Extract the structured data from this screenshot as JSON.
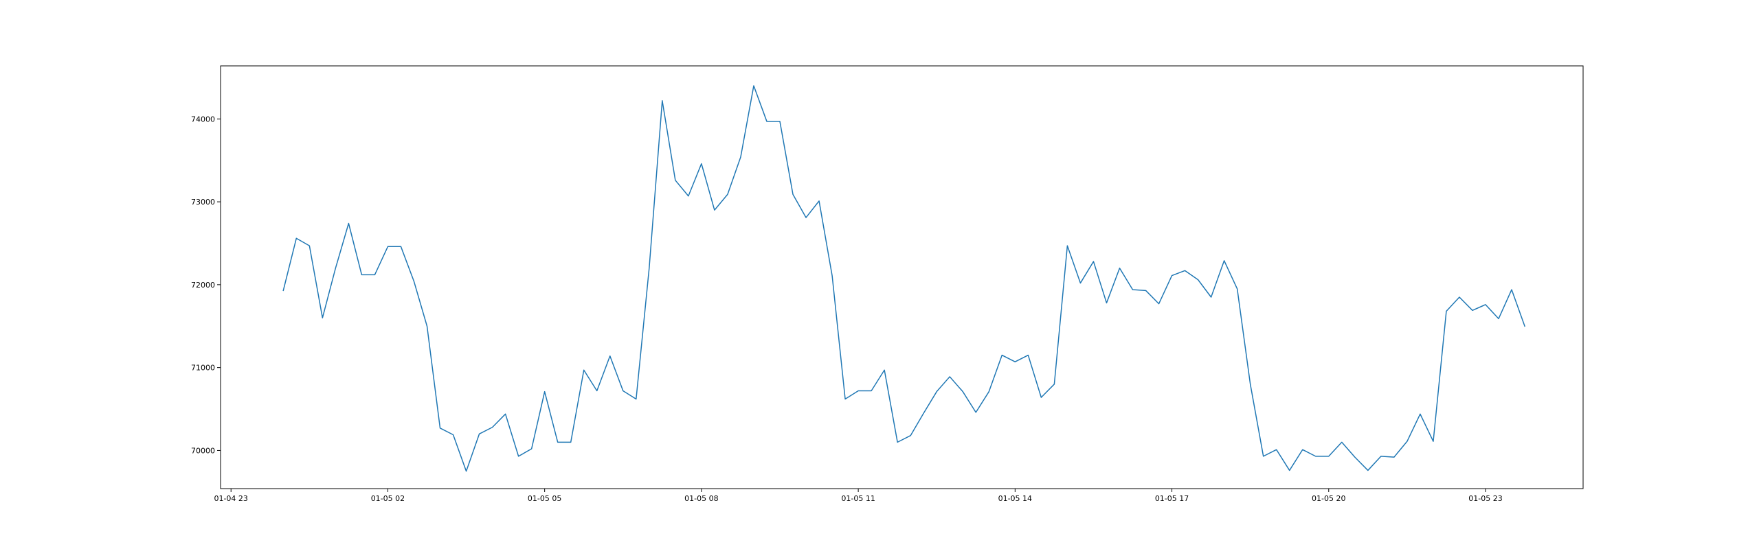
{
  "chart_data": {
    "type": "line",
    "title": "",
    "xlabel": "",
    "ylabel": "",
    "grid": false,
    "line_color": "#1f77b4",
    "x_start": "2024-01-05 00:00",
    "x_step_minutes": 15,
    "xlim": [
      "2024-01-04 22:48",
      "2024-01-06 00:52"
    ],
    "ylim": [
      69540,
      74640
    ],
    "x_ticks": [
      {
        "t": "2024-01-04 23:00",
        "label": "01-04 23"
      },
      {
        "t": "2024-01-05 02:00",
        "label": "01-05 02"
      },
      {
        "t": "2024-01-05 05:00",
        "label": "01-05 05"
      },
      {
        "t": "2024-01-05 08:00",
        "label": "01-05 08"
      },
      {
        "t": "2024-01-05 11:00",
        "label": "01-05 11"
      },
      {
        "t": "2024-01-05 14:00",
        "label": "01-05 14"
      },
      {
        "t": "2024-01-05 17:00",
        "label": "01-05 17"
      },
      {
        "t": "2024-01-05 20:00",
        "label": "01-05 20"
      },
      {
        "t": "2024-01-05 23:00",
        "label": "01-05 23"
      }
    ],
    "y_ticks": [
      {
        "v": 70000,
        "label": "70000"
      },
      {
        "v": 71000,
        "label": "71000"
      },
      {
        "v": 72000,
        "label": "72000"
      },
      {
        "v": 73000,
        "label": "73000"
      },
      {
        "v": 74000,
        "label": "74000"
      }
    ],
    "series": [
      {
        "values": [
          71930,
          72560,
          72470,
          71600,
          72200,
          72740,
          72120,
          72120,
          72460,
          72460,
          72040,
          71500,
          70270,
          70190,
          69750,
          70200,
          70280,
          70440,
          69930,
          70020,
          70710,
          70100,
          70100,
          70970,
          70720,
          71140,
          70720,
          70620,
          72200,
          74220,
          73260,
          73070,
          73460,
          72900,
          73090,
          73540,
          74400,
          73970,
          73970,
          73090,
          72810,
          73010,
          72110,
          70620,
          70720,
          70720,
          70970,
          70100,
          70180,
          70450,
          70710,
          70890,
          70710,
          70460,
          70710,
          71150,
          71070,
          71150,
          70640,
          70800,
          72470,
          72020,
          72280,
          71780,
          72200,
          71940,
          71930,
          71770,
          72110,
          72170,
          72060,
          71850,
          72290,
          71950,
          70800,
          69930,
          70010,
          69760,
          70010,
          69930,
          69930,
          70100,
          69920,
          69760,
          69930,
          69920,
          70110,
          70440,
          70110,
          71680,
          71850,
          71690,
          71760,
          71590,
          71940,
          71500
        ]
      }
    ]
  }
}
